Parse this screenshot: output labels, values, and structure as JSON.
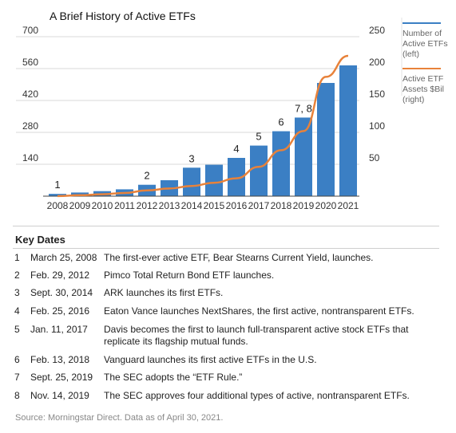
{
  "chart_data": {
    "type": "bar",
    "title": "A Brief History of Active ETFs",
    "categories": [
      "2008",
      "2009",
      "2010",
      "2011",
      "2012",
      "2013",
      "2014",
      "2015",
      "2016",
      "2017",
      "2018",
      "2019",
      "2020",
      "2021"
    ],
    "series": [
      {
        "name": "Number of Active ETFs (left)",
        "type": "bar",
        "axis": "left",
        "color": "#3b7fc4",
        "values": [
          10,
          16,
          22,
          30,
          50,
          70,
          125,
          138,
          168,
          222,
          285,
          345,
          497,
          574
        ]
      },
      {
        "name": "Active ETF Assets $Bil (right)",
        "type": "line",
        "axis": "right",
        "color": "#e8823a",
        "values": [
          0.2,
          1.5,
          3,
          5,
          9,
          12,
          16,
          21,
          28,
          46,
          72,
          102,
          187,
          220
        ]
      }
    ],
    "y_left": {
      "ticks": [
        140,
        280,
        420,
        560,
        700
      ],
      "range": [
        0,
        700
      ]
    },
    "y_right": {
      "ticks": [
        50,
        100,
        150,
        200,
        250
      ],
      "range": [
        0,
        250
      ]
    },
    "annotations": [
      {
        "label": "1",
        "category": "2008"
      },
      {
        "label": "2",
        "category": "2012"
      },
      {
        "label": "3",
        "category": "2014"
      },
      {
        "label": "4",
        "category": "2016"
      },
      {
        "label": "5",
        "category": "2017"
      },
      {
        "label": "6",
        "category": "2018"
      },
      {
        "label": "7, 8",
        "category": "2019"
      }
    ],
    "grid": true,
    "legend_position": "right"
  },
  "legend": {
    "bar_label": "Number of Active ETFs (left)",
    "line_label": "Active ETF Assets $Bil (right)"
  },
  "key_dates": {
    "title": "Key Dates",
    "events": [
      {
        "num": "1",
        "date": "March 25, 2008",
        "desc": "The first-ever active ETF, Bear Stearns Current Yield, launches."
      },
      {
        "num": "2",
        "date": "Feb. 29, 2012",
        "desc": "Pimco Total Return Bond ETF launches."
      },
      {
        "num": "3",
        "date": "Sept. 30, 2014",
        "desc": "ARK launches its first ETFs."
      },
      {
        "num": "4",
        "date": "Feb. 25, 2016",
        "desc": "Eaton Vance launches NextShares, the first active, nontransparent ETFs."
      },
      {
        "num": "5",
        "date": "Jan. 11, 2017",
        "desc": "Davis becomes the first to launch full-transparent active stock ETFs that replicate its flagship mutual funds."
      },
      {
        "num": "6",
        "date": "Feb. 13, 2018",
        "desc": "Vanguard launches its first active ETFs in the U.S."
      },
      {
        "num": "7",
        "date": "Sept. 25, 2019",
        "desc": "The SEC adopts the “ETF Rule.”"
      },
      {
        "num": "8",
        "date": "Nov. 14, 2019",
        "desc": "The SEC approves four additional types of active, nontransparent ETFs."
      }
    ]
  },
  "source": "Source: Morningstar Direct. Data as of April 30, 2021."
}
